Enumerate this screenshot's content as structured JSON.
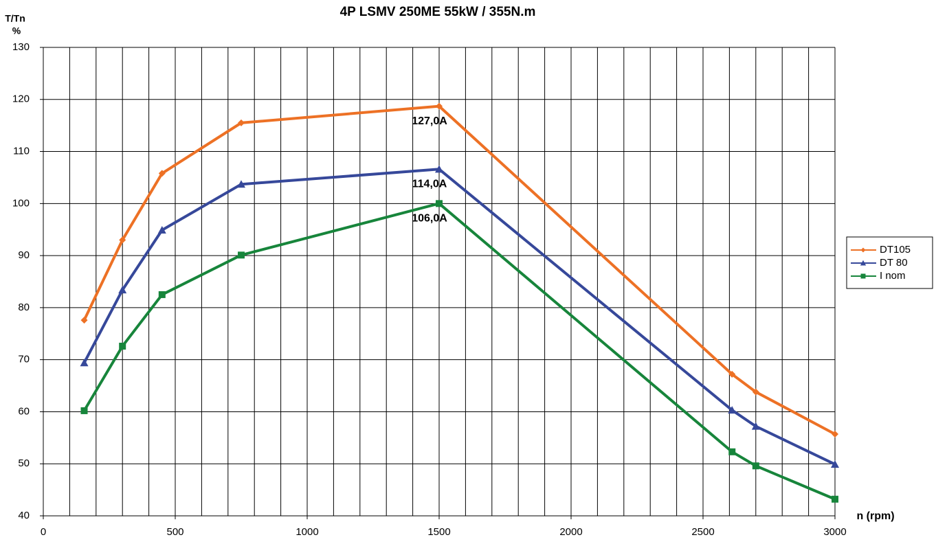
{
  "chart_data": {
    "type": "line",
    "title": "4P LSMV 250ME 55kW / 355N.m",
    "ylabel": "T/Tn",
    "yunit": "%",
    "xlabel": "n (rpm)",
    "x": [
      155,
      300,
      450,
      750,
      1500,
      2610,
      2700,
      3000
    ],
    "series": [
      {
        "name": "DT105",
        "color": "#ed7125",
        "marker": "diamond",
        "values": [
          77.6,
          93,
          105.8,
          115.5,
          118.7,
          67.2,
          63.8,
          55.7
        ]
      },
      {
        "name": "DT 80",
        "color": "#36489a",
        "marker": "triangle",
        "values": [
          69.4,
          83.4,
          94.9,
          103.7,
          106.6,
          60.3,
          57.2,
          49.9
        ]
      },
      {
        "name": "I nom",
        "color": "#17853b",
        "marker": "square",
        "values": [
          60.2,
          72.6,
          82.5,
          90.1,
          100,
          52.3,
          49.6,
          43.2
        ]
      }
    ],
    "annotations": [
      "127,0A",
      "114,0A",
      "106,0A"
    ],
    "xlim": [
      0,
      3000
    ],
    "xticks": [
      0,
      500,
      1000,
      1500,
      2000,
      2500,
      3000
    ],
    "xgrid": [
      100,
      200,
      300,
      400,
      600,
      700,
      800,
      900,
      1100,
      1200,
      1300,
      1400,
      1600,
      1700,
      1800,
      1900,
      2100,
      2200,
      2300,
      2400,
      2600,
      2700,
      2800,
      2900
    ],
    "ylim": [
      40,
      130
    ],
    "yticks": [
      40,
      50,
      60,
      70,
      80,
      90,
      100,
      110,
      120,
      130
    ],
    "grid": true,
    "legend": "right"
  }
}
